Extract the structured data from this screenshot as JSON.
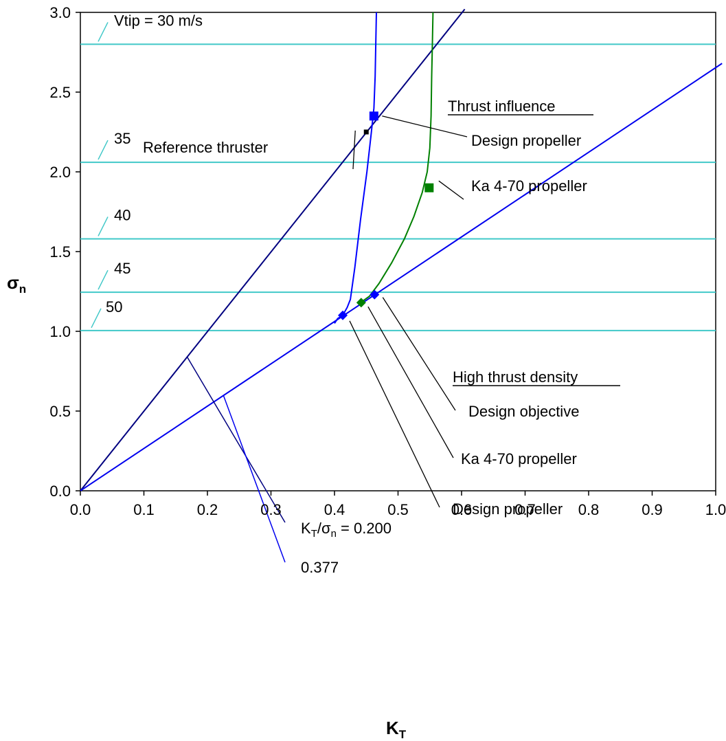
{
  "chart_data": {
    "type": "line",
    "xlabel": "K",
    "xlabel_sub": "T",
    "ylabel": "σ",
    "ylabel_sub": "n",
    "xlim": [
      0.0,
      1.0
    ],
    "ylim": [
      0.0,
      3.0
    ],
    "x_ticks": [
      "0.0",
      "0.1",
      "0.2",
      "0.3",
      "0.4",
      "0.5",
      "0.6",
      "0.7",
      "0.8",
      "0.9",
      "1.0"
    ],
    "y_ticks": [
      "0.0",
      "0.5",
      "1.0",
      "1.5",
      "2.0",
      "2.5",
      "3.0"
    ],
    "grid": false,
    "colors": {
      "constant_tip_speed": "#40c8c8",
      "ratio_line_0200": "#000080",
      "ratio_line_0377": "#0000ee",
      "design_propeller": "#0000ff",
      "ka470_propeller": "#008000",
      "reference_thruster": "#000000",
      "leader": "#000000"
    },
    "tip_speed_lines": [
      {
        "label": "Vtip = 30 m/s",
        "y": 2.8
      },
      {
        "label": "35",
        "y": 2.06
      },
      {
        "label": "40",
        "y": 1.58
      },
      {
        "label": "45",
        "y": 1.245
      },
      {
        "label": "50",
        "y": 1.005
      }
    ],
    "ratio_lines": [
      {
        "label_prefix": "K",
        "label_sub1": "T",
        "label_mid": "/σ",
        "label_sub2": "n",
        "label_suffix": " = 0.200",
        "x": [
          0.0,
          0.605
        ],
        "y": [
          0.0,
          3.02
        ]
      },
      {
        "label": "0.377",
        "x": [
          0.0,
          1.01
        ],
        "y": [
          0.0,
          2.68
        ]
      }
    ],
    "curves": [
      {
        "id": "design_propeller",
        "x": [
          0.4,
          0.405,
          0.413,
          0.42,
          0.425,
          0.432,
          0.441,
          0.451,
          0.458,
          0.462,
          0.464,
          0.465,
          0.466
        ],
        "y": [
          1.05,
          1.08,
          1.1,
          1.15,
          1.2,
          1.4,
          1.7,
          2.0,
          2.25,
          2.4,
          2.6,
          2.8,
          3.0
        ]
      },
      {
        "id": "ka470_propeller",
        "x": [
          0.441,
          0.455,
          0.47,
          0.49,
          0.51,
          0.525,
          0.538,
          0.546,
          0.55,
          0.552,
          0.553,
          0.554,
          0.555
        ],
        "y": [
          1.18,
          1.22,
          1.3,
          1.43,
          1.58,
          1.72,
          1.87,
          2.0,
          2.15,
          2.35,
          2.6,
          2.8,
          3.0
        ]
      }
    ],
    "points": [
      {
        "id": "design_propeller_thrust_influence",
        "x": 0.462,
        "y": 2.35,
        "marker": "square"
      },
      {
        "id": "ka470_thrust_influence",
        "x": 0.549,
        "y": 1.9,
        "marker": "square"
      },
      {
        "id": "reference_thruster",
        "x": 0.45,
        "y": 2.25,
        "marker": "small-square"
      },
      {
        "id": "design_objective",
        "x": 0.463,
        "y": 1.23,
        "marker": "diamond"
      },
      {
        "id": "ka470_high_density",
        "x": 0.442,
        "y": 1.18,
        "marker": "diamond"
      },
      {
        "id": "design_propeller_high_density",
        "x": 0.413,
        "y": 1.1,
        "marker": "diamond"
      }
    ],
    "annotations": [
      {
        "text": "Thrust influence",
        "underline": true
      },
      {
        "text": "Design propeller"
      },
      {
        "text": "Reference thruster"
      },
      {
        "text": "Ka 4-70 propeller"
      },
      {
        "text": "High thrust density",
        "underline": true
      },
      {
        "text": "Design objective"
      },
      {
        "text": "Ka 4-70 propeller"
      },
      {
        "text": "Design propeller"
      }
    ]
  }
}
